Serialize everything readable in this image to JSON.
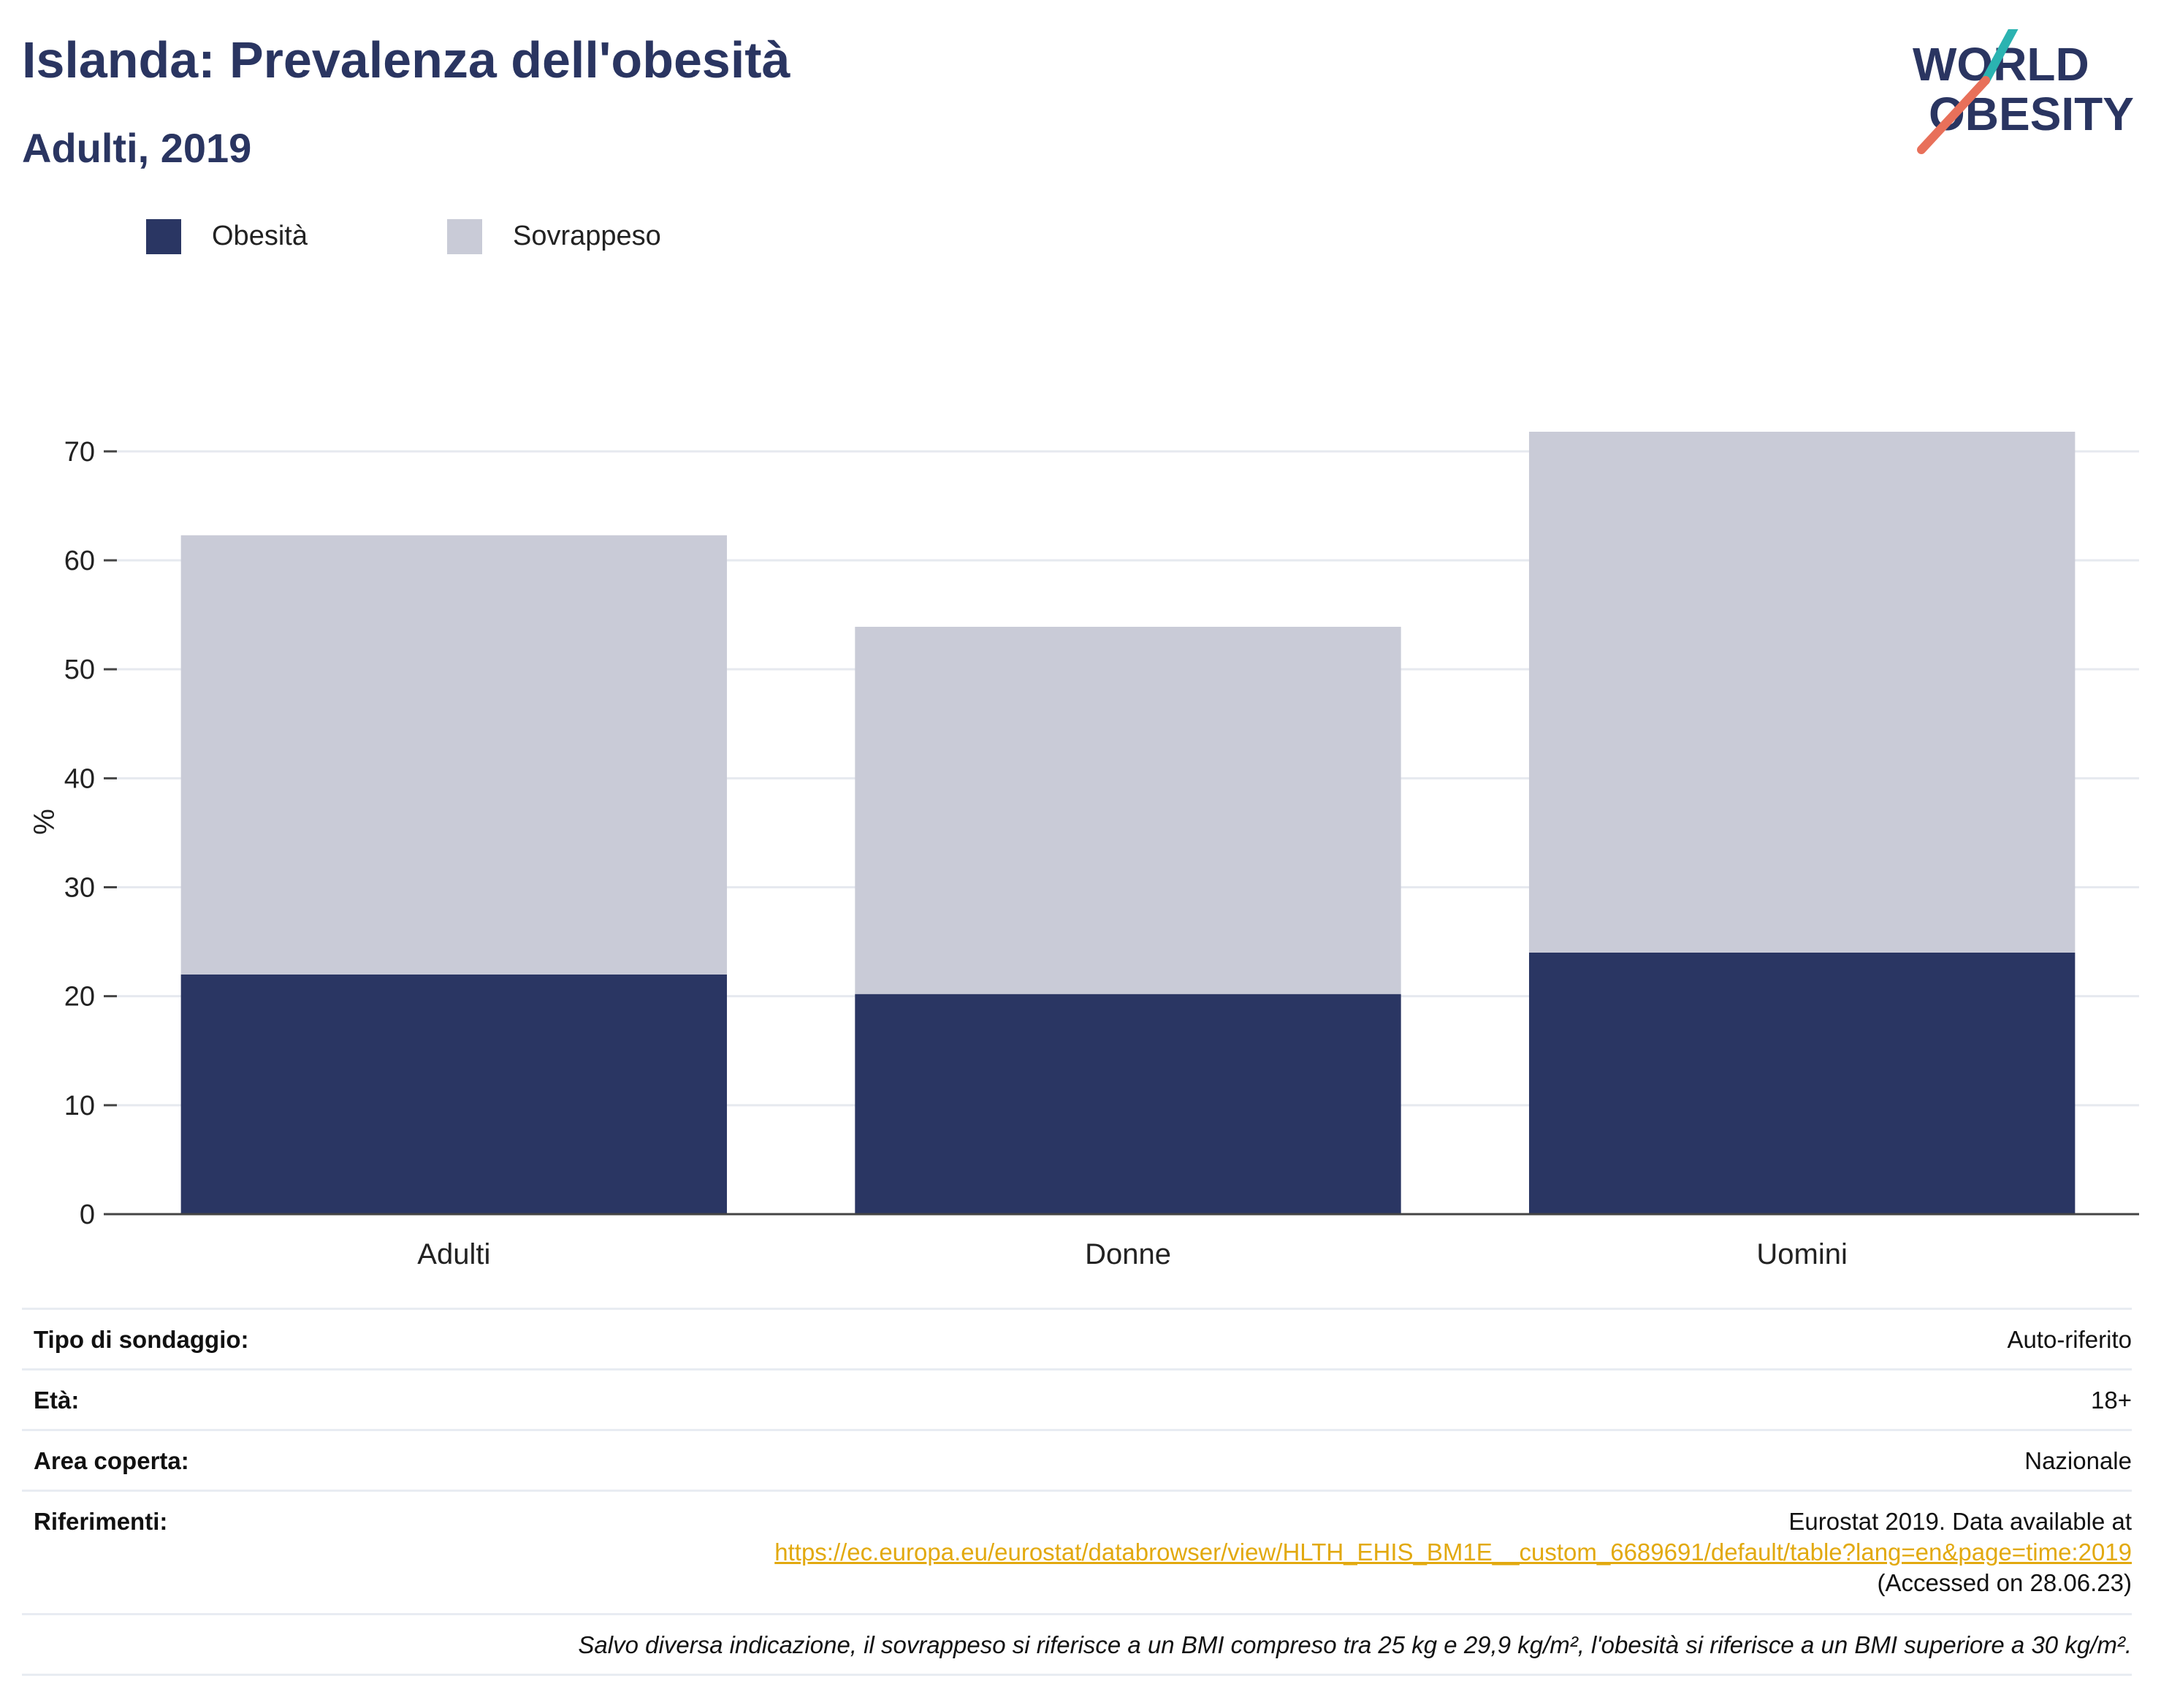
{
  "header": {
    "title": "Islanda: Prevalenza dell'obesità",
    "subtitle": "Adulti, 2019"
  },
  "logo": {
    "line1": "WORLD",
    "line2": "OBESITY",
    "text_color": "#2a3561",
    "accent_teal": "#2bb3b1",
    "accent_coral": "#e8705a"
  },
  "chart_data": {
    "type": "bar",
    "stacked": true,
    "categories": [
      "Adulti",
      "Donne",
      "Uomini"
    ],
    "series": [
      {
        "name": "Obesità",
        "color": "#2a3663",
        "values": [
          22,
          20.2,
          24
        ]
      },
      {
        "name": "Sovrappeso",
        "color": "#c9cbd7",
        "values": [
          40.3,
          33.7,
          47.8
        ]
      }
    ],
    "ylabel": "%",
    "ylim": [
      0,
      72
    ],
    "yticks": [
      0,
      10,
      20,
      30,
      40,
      50,
      60,
      70
    ],
    "grid": true,
    "legend_position": "top-left"
  },
  "info": {
    "survey_type_label": "Tipo di sondaggio:",
    "survey_type_value": "Auto-riferito",
    "age_label": "Età:",
    "age_value": "18+",
    "area_label": "Area coperta:",
    "area_value": "Nazionale",
    "references_label": "Riferimenti:",
    "references_line1": "Eurostat 2019. Data available at",
    "references_url": "https://ec.europa.eu/eurostat/databrowser/view/HLTH_EHIS_BM1E__custom_6689691/default/table?lang=en&page=time:2019",
    "references_line3": "(Accessed on 28.06.23)",
    "footnote": "Salvo diversa indicazione, il sovrappeso si riferisce a un BMI compreso tra 25 kg e 29,9 kg/m², l'obesità si riferisce a un BMI superiore a 30 kg/m²."
  }
}
